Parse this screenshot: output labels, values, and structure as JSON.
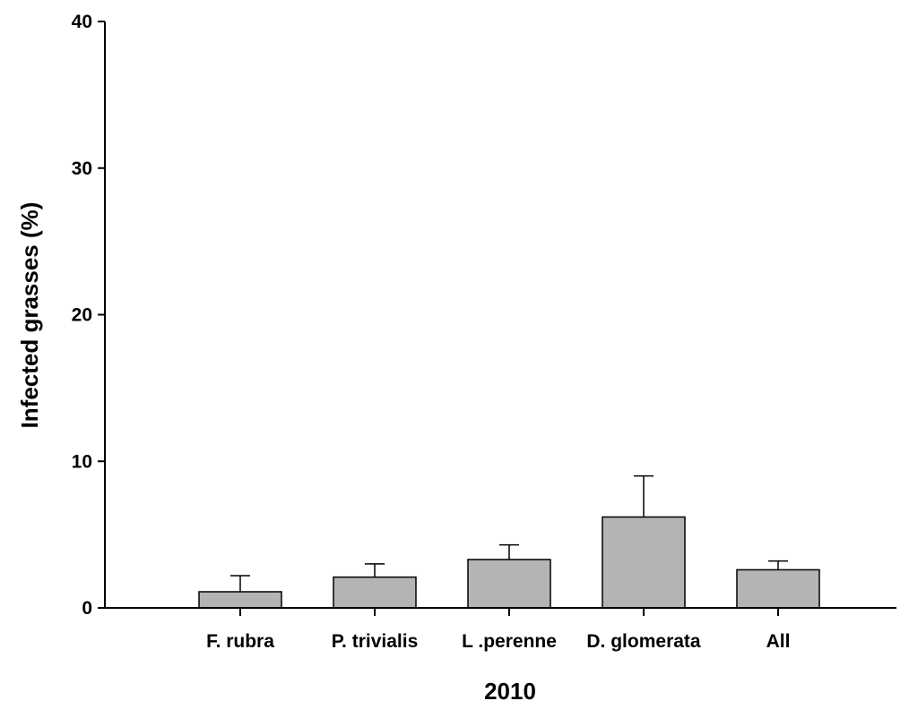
{
  "chart_data": {
    "type": "bar",
    "title": "",
    "xlabel": "2010",
    "ylabel": "Infected grasses (%)",
    "ylim": [
      0,
      40
    ],
    "yticks": [
      0,
      10,
      20,
      30,
      40
    ],
    "grid": false,
    "categories": [
      "F. rubra",
      "P. trivialis",
      "L .perenne",
      "D. glomerata",
      "All"
    ],
    "series": [
      {
        "values": [
          1.1,
          2.1,
          3.3,
          6.2,
          2.6
        ],
        "error_upper": [
          1.1,
          0.9,
          1.0,
          2.8,
          0.6
        ]
      }
    ],
    "colors": {
      "bar_fill": "#b4b4b4",
      "bar_stroke": "#000000",
      "axis": "#000000"
    }
  }
}
